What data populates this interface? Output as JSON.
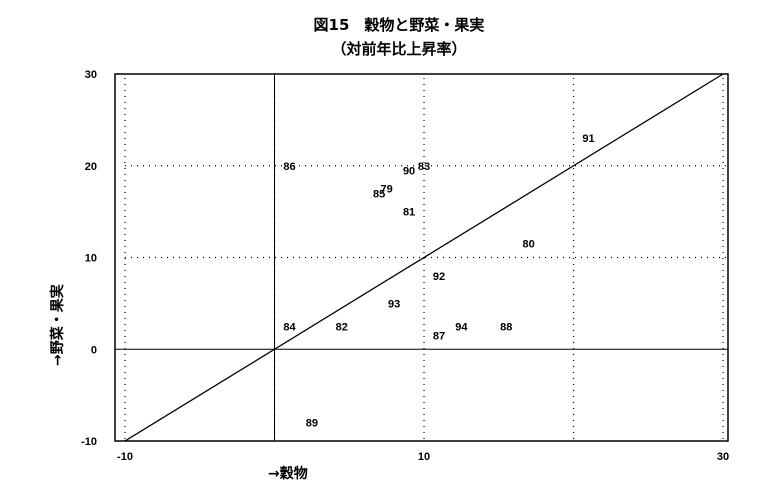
{
  "chart_data": {
    "type": "scatter",
    "title": "図15　穀物と野菜・果実",
    "subtitle": "（対前年比上昇率）",
    "xlabel": "→穀物",
    "ylabel": "→野菜・果実",
    "xlim": [
      -10,
      31
    ],
    "ylim": [
      -10,
      30
    ],
    "x_ticks": [
      -10,
      10,
      30
    ],
    "y_ticks": [
      -10,
      0,
      10,
      20,
      30
    ],
    "dotted_grid_x": [
      -10,
      0,
      10,
      20,
      30
    ],
    "dotted_grid_y": [
      10,
      20
    ],
    "reference_lines": [
      "x=0",
      "y=0",
      "y=x"
    ],
    "points": [
      {
        "label": "79",
        "x": 7.5,
        "y": 17.5
      },
      {
        "label": "80",
        "x": 17,
        "y": 11.5
      },
      {
        "label": "81",
        "x": 9,
        "y": 15
      },
      {
        "label": "82",
        "x": 4.5,
        "y": 2.5
      },
      {
        "label": "83",
        "x": 10,
        "y": 20
      },
      {
        "label": "84",
        "x": 1,
        "y": 2.5
      },
      {
        "label": "85",
        "x": 7,
        "y": 17
      },
      {
        "label": "86",
        "x": 1,
        "y": 20
      },
      {
        "label": "87",
        "x": 11,
        "y": 1.5
      },
      {
        "label": "88",
        "x": 15.5,
        "y": 2.5
      },
      {
        "label": "89",
        "x": 2.5,
        "y": -8
      },
      {
        "label": "90",
        "x": 9,
        "y": 19.5
      },
      {
        "label": "91",
        "x": 21,
        "y": 23
      },
      {
        "label": "92",
        "x": 11,
        "y": 8
      },
      {
        "label": "93",
        "x": 8,
        "y": 5
      },
      {
        "label": "94",
        "x": 12.5,
        "y": 2.5
      }
    ]
  }
}
